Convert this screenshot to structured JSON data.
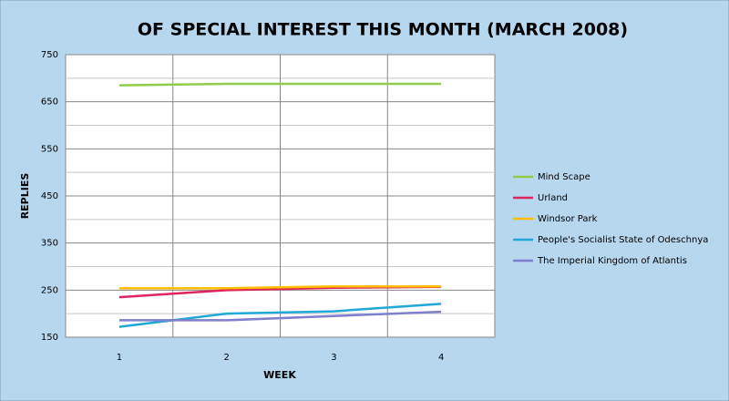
{
  "chart_data": {
    "type": "line",
    "title": "OF SPECIAL INTEREST THIS MONTH (MARCH 2008)",
    "x_label": "WEEK",
    "y_label": "REPLIES",
    "categories": [
      "1",
      "2",
      "3",
      "4"
    ],
    "series": [
      {
        "name": "Mind Scape",
        "color": "#8fce4a",
        "values": [
          685,
          688,
          688,
          688
        ]
      },
      {
        "name": "Urland",
        "color": "#e0245e",
        "values": [
          235,
          250,
          255,
          257
        ]
      },
      {
        "name": "Windsor Park",
        "color": "#ffc000",
        "values": [
          254,
          254,
          258,
          258
        ]
      },
      {
        "name": "People's Socialist State of Odeschnya",
        "color": "#1fa8d8",
        "values": [
          172,
          200,
          205,
          221
        ]
      },
      {
        "name": "The Imperial Kingdom of Atlantis",
        "color": "#7f7fcf",
        "values": [
          186,
          186,
          195,
          204
        ]
      }
    ],
    "ylim": [
      150,
      750
    ],
    "yticks": [
      150,
      250,
      350,
      450,
      550,
      650,
      750
    ],
    "y_minor_gridlines": [
      200,
      300,
      400,
      500,
      600,
      700
    ],
    "grid": true,
    "legend": "right"
  }
}
